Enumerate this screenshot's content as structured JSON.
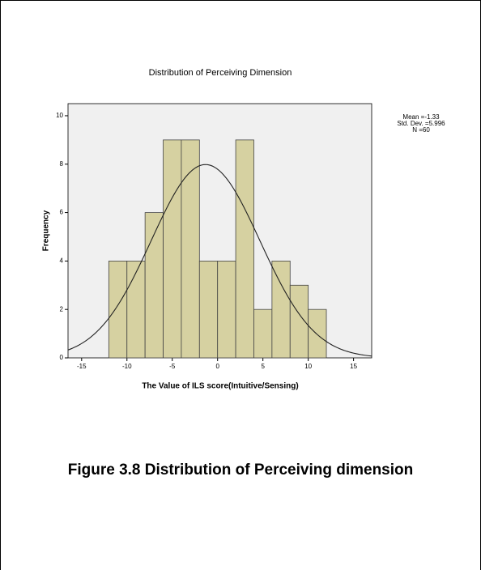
{
  "chart_data": {
    "type": "histogram",
    "title": "Distribution of Perceiving Dimension",
    "xlabel": "The Value of ILS score(Intuitive/Sensing)",
    "ylabel": "Frequency",
    "bins": [
      -12,
      -10,
      -8,
      -6,
      -4,
      -2,
      0,
      2,
      4,
      6,
      8,
      10,
      12
    ],
    "counts": [
      4,
      4,
      6,
      9,
      9,
      4,
      4,
      9,
      2,
      4,
      3,
      2
    ],
    "color": "#d6d1a1",
    "edge_color": "#444444",
    "background": "#f0f0f0",
    "xlim": [
      -16.5,
      17
    ],
    "ylim": [
      0,
      10.5
    ],
    "xticks": [
      -15,
      -10,
      -5,
      0,
      5,
      10,
      15
    ],
    "yticks": [
      0,
      2,
      4,
      6,
      8,
      10
    ],
    "normal_curve": true,
    "stats": {
      "mean": {
        "value": -1.33,
        "label": "Mean =-1.33"
      },
      "sd": {
        "value": 5.996,
        "label": "Std. Dev. =5.996"
      },
      "n": {
        "value": 60,
        "label": "N =60"
      }
    }
  },
  "caption": "Figure 3.8 Distribution of Perceiving dimension"
}
